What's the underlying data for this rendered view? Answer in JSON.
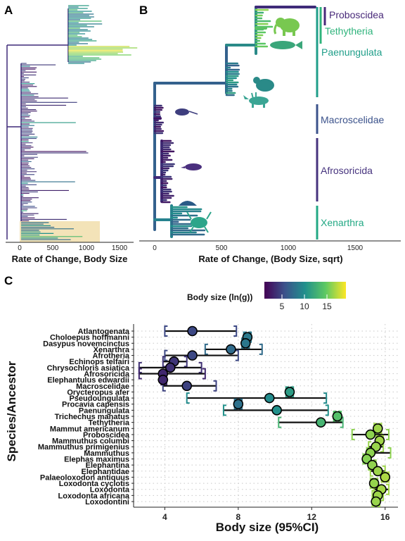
{
  "panels": {
    "a": {
      "label": "A",
      "xlabel": "Rate of Change, Body Size",
      "ticks": [
        "0",
        "500",
        "1000",
        "1500"
      ]
    },
    "b": {
      "label": "B",
      "xlabel": "Rate of Change, (Body Size, sqrt)",
      "ticks": [
        "0",
        "500",
        "1000",
        "1500"
      ]
    },
    "c": {
      "label": "C"
    }
  },
  "clades": [
    {
      "name": "Proboscidea",
      "color": "#482979"
    },
    {
      "name": "Tethytheria",
      "color": "#2fb47c"
    },
    {
      "name": "Paenungulata",
      "color": "#1f9e89"
    },
    {
      "name": "Macroscelidae",
      "color": "#3b528b"
    },
    {
      "name": "Afrosoricida",
      "color": "#46337e"
    },
    {
      "name": "Xenarthra",
      "color": "#22a884"
    }
  ],
  "legend": {
    "title": "Body size (ln(g))",
    "ticks": [
      "5",
      "10",
      "15"
    ]
  },
  "chart_data": {
    "type": "scatter",
    "xlabel": "Body size (95%CI)",
    "ylabel": "Species/Ancestor",
    "xlim": [
      2.3,
      16.7
    ],
    "xticks": [
      "4",
      "8",
      "12",
      "16"
    ],
    "categories": [
      "Atlantogenata",
      "Choloepus hoffmanni",
      "Dasypus novemcinctus",
      "Xenarthra",
      "Afrotheria",
      "Echinops telfairi",
      "Chrysochloris asiatica",
      "Afrosoricida",
      "Elephantulus edwardii",
      "Macroscelidae",
      "Orycteropus afer",
      "Pseudoungulata",
      "Procavia capensis",
      "Paenungulata",
      "Trichechus manatus",
      "Tethytheria",
      "Mammut americanum",
      "Proboscidea",
      "Mammuthus columbi",
      "Mammuthus primigenius",
      "Mammuthus",
      "Elephas maximus",
      "Elephantina",
      "Elephantidae",
      "Palaeoloxodon antiquus",
      "Loxodonta cyclotis",
      "Loxodonta",
      "Loxodonta africana",
      "Loxodontini"
    ],
    "series": [
      {
        "values": [
          5.5,
          8.5,
          8.4,
          7.6,
          5.5,
          4.5,
          4.3,
          3.9,
          3.9,
          5.2,
          10.8,
          9.7,
          8.0,
          10.1,
          13.4,
          12.5,
          15.6,
          15.2,
          15.7,
          15.5,
          15.2,
          15.0,
          15.3,
          15.6,
          16.0,
          15.4,
          15.8,
          15.6,
          15.5
        ]
      },
      {
        "values": [
          4.0,
          8.3,
          8.2,
          6.2,
          4.0,
          3.9,
          2.6,
          2.6,
          3.8,
          3.9,
          10.6,
          5.2,
          7.8,
          7.2,
          13.2,
          10.2,
          15.4,
          14.2,
          15.5,
          15.1,
          15.0,
          14.8,
          15.1,
          15.2,
          15.8,
          15.2,
          15.4,
          15.3,
          15.3
        ]
      },
      {
        "values": [
          7.9,
          8.7,
          8.6,
          9.3,
          8.0,
          5.2,
          6.0,
          6.2,
          4.1,
          6.8,
          11.0,
          12.8,
          8.2,
          12.9,
          13.6,
          13.7,
          15.8,
          16.2,
          15.9,
          15.9,
          16.3,
          15.2,
          15.5,
          16.0,
          16.2,
          15.6,
          16.2,
          15.9,
          15.7
        ]
      }
    ]
  }
}
